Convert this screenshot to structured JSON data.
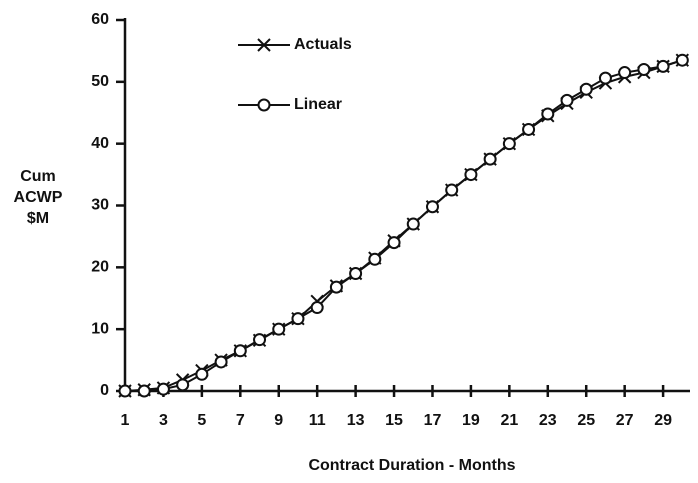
{
  "chart_data": {
    "type": "line",
    "x_label": "Contract Duration - Months",
    "y_label": [
      "Cum",
      "ACWP",
      "$M"
    ],
    "x": [
      1,
      2,
      3,
      4,
      5,
      6,
      7,
      8,
      9,
      10,
      11,
      12,
      13,
      14,
      15,
      16,
      17,
      18,
      19,
      20,
      21,
      22,
      23,
      24,
      25,
      26,
      27,
      28,
      29,
      30
    ],
    "series": [
      {
        "name": "Actuals",
        "color": "#111111",
        "marker": "x",
        "values": [
          0,
          0.2,
          0.5,
          1.8,
          3.3,
          5,
          6.5,
          8.2,
          10,
          11.7,
          14.5,
          17,
          19,
          21.5,
          24.3,
          27,
          29.8,
          32.5,
          35,
          37.5,
          40,
          42.3,
          44.5,
          46.5,
          48.3,
          49.8,
          50.8,
          51.5,
          52.5,
          53.5
        ]
      },
      {
        "name": "Linear",
        "color": "#111111",
        "marker": "circle",
        "values": [
          0,
          0,
          0.3,
          1.0,
          2.7,
          4.7,
          6.5,
          8.3,
          10,
          11.7,
          13.5,
          16.8,
          19,
          21.3,
          24,
          27,
          29.8,
          32.5,
          35,
          37.5,
          40,
          42.3,
          44.8,
          47,
          48.8,
          50.6,
          51.5,
          52,
          52.5,
          53.5
        ]
      }
    ],
    "xlim": [
      1,
      30.4
    ],
    "ylim": [
      0,
      60
    ],
    "xticks": [
      1,
      3,
      5,
      7,
      9,
      11,
      13,
      15,
      17,
      19,
      21,
      23,
      25,
      27,
      29
    ],
    "yticks": [
      0,
      10,
      20,
      30,
      40,
      50,
      60
    ],
    "grid": false
  }
}
